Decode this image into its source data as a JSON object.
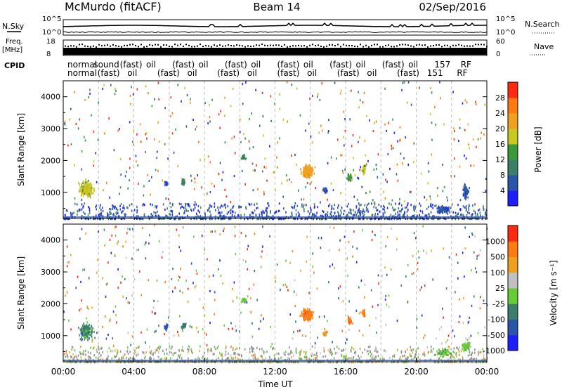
{
  "header": {
    "station": "McMurdo (fitACF)",
    "beam": "Beam 14",
    "date": "02/Sep/2016"
  },
  "aux": {
    "nsky_label": "N.Sky",
    "nsearch_label": "N.Search",
    "noise_ticks": [
      "10^5",
      "10^0"
    ],
    "freq_label_1": "Freq.",
    "freq_label_2": "[MHz]",
    "freq_ticks": [
      "18",
      "8"
    ],
    "nave_label": "Nave",
    "nave_ticks": [
      "60",
      "0"
    ],
    "cpid_label": "CPID",
    "cpid_row1": [
      "normal",
      "sound",
      "(fast)",
      "oil",
      "(fast)",
      "oil",
      "(fast)",
      "oil",
      "(fast)",
      "oil",
      "(fast)",
      "oil",
      "(fast)",
      "oil",
      "157",
      "RF"
    ],
    "cpid_row2": [
      "normal",
      "(fast)",
      "oil",
      "(fast)",
      "oil",
      "(fast)",
      "oil",
      "(fast)",
      "oil",
      "(fast)",
      "oil",
      "(fast)",
      "151",
      "RF"
    ]
  },
  "colors": {
    "power": [
      "#1e1eff",
      "#2b55a8",
      "#3b7f6a",
      "#3a9a3a",
      "#c8c820",
      "#f0a020",
      "#ff7a10",
      "#ff2a10"
    ],
    "velocity": [
      "#1e1eff",
      "#2b55a8",
      "#3b7f6a",
      "#66cc33",
      "#c0c0c0",
      "#f0a020",
      "#ff7a10",
      "#ff2a10"
    ],
    "ground": "#909090"
  },
  "chart_data": [
    {
      "type": "heatmap",
      "name": "power",
      "ylabel": "Slant Range [km]",
      "yticks": [
        1000,
        2000,
        3000,
        4000
      ],
      "ylim": [
        180,
        4500
      ],
      "xticks": [
        "00:00",
        "04:00",
        "08:00",
        "12:00",
        "16:00",
        "20:00",
        "00:00"
      ],
      "xlim_hours": [
        0,
        24
      ],
      "colorbar_label": "Power [dB]",
      "colorbar_ticks": [
        "28",
        "24",
        "20",
        "16",
        "12",
        "8",
        "4"
      ],
      "blobs": [
        {
          "t": 1.3,
          "r": 1150,
          "dt": 0.55,
          "dr": 380,
          "level": 4
        },
        {
          "t": 13.8,
          "r": 1700,
          "dt": 0.55,
          "dr": 300,
          "level": 5
        },
        {
          "t": 10.2,
          "r": 2150,
          "dt": 0.2,
          "dr": 150,
          "level": 2
        },
        {
          "t": 6.8,
          "r": 1350,
          "dt": 0.2,
          "dr": 150,
          "level": 2
        },
        {
          "t": 16.2,
          "r": 1500,
          "dt": 0.2,
          "dr": 200,
          "level": 3
        },
        {
          "t": 17.0,
          "r": 1750,
          "dt": 0.15,
          "dr": 250,
          "level": 4
        },
        {
          "t": 5.8,
          "r": 1300,
          "dt": 0.15,
          "dr": 150,
          "level": 1
        },
        {
          "t": 22.8,
          "r": 1050,
          "dt": 0.25,
          "dr": 300,
          "level": 1
        },
        {
          "t": 21.5,
          "r": 500,
          "dt": 0.6,
          "dr": 150,
          "level": 1
        },
        {
          "t": 14.8,
          "r": 1100,
          "dt": 0.2,
          "dr": 120,
          "level": 1
        }
      ]
    },
    {
      "type": "heatmap",
      "name": "velocity",
      "ylabel": "Slant Range [km]",
      "yticks": [
        1000,
        2000,
        3000,
        4000
      ],
      "ylim": [
        180,
        4500
      ],
      "xticks": [
        "00:00",
        "04:00",
        "08:00",
        "12:00",
        "16:00",
        "20:00",
        "00:00"
      ],
      "xlim_hours": [
        0,
        24
      ],
      "xlabel": "Time UT",
      "colorbar_label": "Velocity [m s⁻¹]",
      "colorbar_ticks": [
        "1000",
        "500",
        "100",
        "25",
        "-25",
        "-100",
        "-500",
        "-1000"
      ],
      "blobs": [
        {
          "t": 1.3,
          "r": 1150,
          "dt": 0.55,
          "dr": 380,
          "level": 2
        },
        {
          "t": 13.8,
          "r": 1700,
          "dt": 0.55,
          "dr": 300,
          "level": 6
        },
        {
          "t": 10.2,
          "r": 2150,
          "dt": 0.2,
          "dr": 150,
          "level": 3
        },
        {
          "t": 6.8,
          "r": 1350,
          "dt": 0.2,
          "dr": 150,
          "level": 2
        },
        {
          "t": 16.2,
          "r": 1500,
          "dt": 0.2,
          "dr": 200,
          "level": 6
        },
        {
          "t": 17.0,
          "r": 1750,
          "dt": 0.15,
          "dr": 250,
          "level": 6
        },
        {
          "t": 5.8,
          "r": 1300,
          "dt": 0.15,
          "dr": 150,
          "level": 1
        },
        {
          "t": 22.8,
          "r": 700,
          "dt": 0.35,
          "dr": 250,
          "level": 3
        },
        {
          "t": 21.5,
          "r": 500,
          "dt": 0.6,
          "dr": 150,
          "level": 3
        },
        {
          "t": 14.8,
          "r": 1100,
          "dt": 0.2,
          "dr": 120,
          "level": 5
        }
      ]
    }
  ]
}
